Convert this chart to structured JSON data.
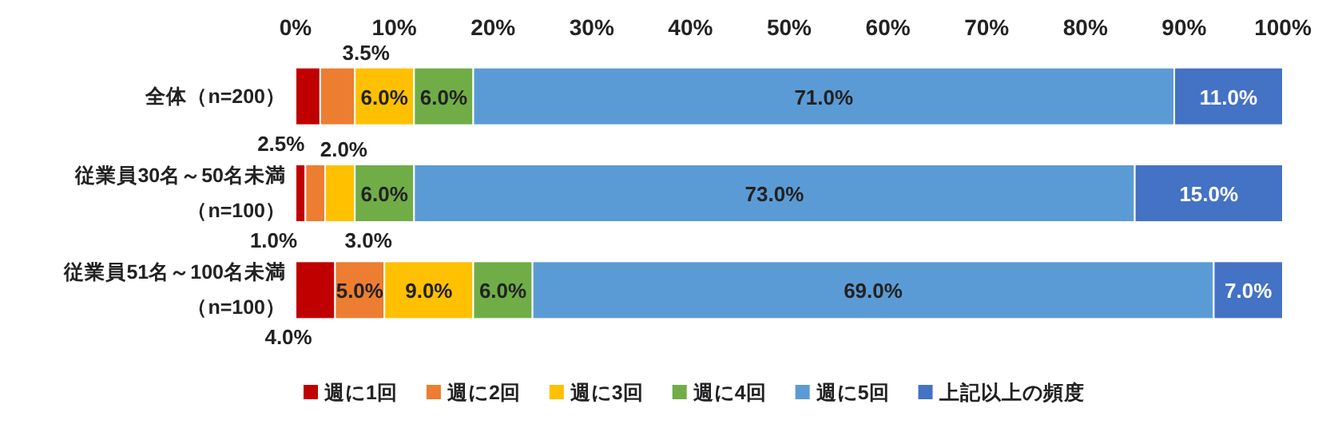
{
  "chart_data": {
    "type": "bar",
    "orientation": "horizontal",
    "stacked": true,
    "categories": [
      "全体（n=200）",
      "従業員30名～50名未満（n=100）",
      "従業員51名～100名未満（n=100）"
    ],
    "series": [
      {
        "name": "週に1回",
        "color": "#c00000",
        "values": [
          2.5,
          1.0,
          4.0
        ],
        "value_labels": [
          "2.5%",
          "1.0%",
          "4.0%"
        ]
      },
      {
        "name": "週に2回",
        "color": "#ed7d31",
        "values": [
          3.5,
          2.0,
          5.0
        ],
        "value_labels": [
          "3.5%",
          "2.0%",
          "5.0%"
        ]
      },
      {
        "name": "週に3回",
        "color": "#ffc000",
        "values": [
          6.0,
          3.0,
          9.0
        ],
        "value_labels": [
          "6.0%",
          "3.0%",
          "9.0%"
        ]
      },
      {
        "name": "週に4回",
        "color": "#70ad47",
        "values": [
          6.0,
          6.0,
          6.0
        ],
        "value_labels": [
          "6.0%",
          "6.0%",
          "6.0%"
        ]
      },
      {
        "name": "週に5回",
        "color": "#5b9bd5",
        "values": [
          71.0,
          73.0,
          69.0
        ],
        "value_labels": [
          "71.0%",
          "73.0%",
          "69.0%"
        ]
      },
      {
        "name": "上記以上の頻度",
        "color": "#4472c4",
        "values": [
          11.0,
          15.0,
          7.0
        ],
        "value_labels": [
          "11.0%",
          "15.0%",
          "7.0%"
        ]
      }
    ],
    "xlim": [
      0,
      100
    ],
    "xticks": [
      {
        "value": 0,
        "label": "0%"
      },
      {
        "value": 10,
        "label": "10%"
      },
      {
        "value": 20,
        "label": "20%"
      },
      {
        "value": 30,
        "label": "30%"
      },
      {
        "value": 40,
        "label": "40%"
      },
      {
        "value": 50,
        "label": "50%"
      },
      {
        "value": 60,
        "label": "60%"
      },
      {
        "value": 70,
        "label": "70%"
      },
      {
        "value": 80,
        "label": "80%"
      },
      {
        "value": 90,
        "label": "90%"
      },
      {
        "value": 100,
        "label": "100%"
      }
    ],
    "grid": false,
    "legend": "bottom"
  }
}
